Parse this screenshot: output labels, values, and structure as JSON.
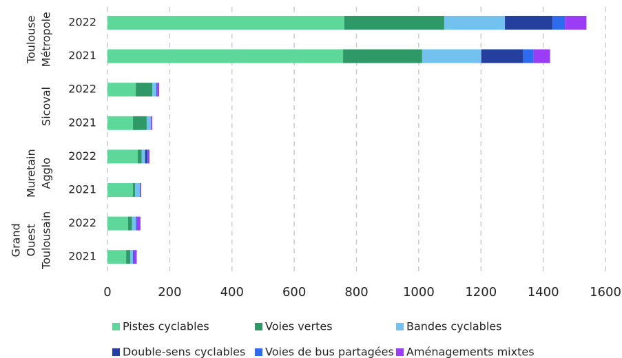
{
  "chart_data": {
    "type": "stacked-barh",
    "groups": [
      {
        "label": [
          "Toulouse",
          "Métropole"
        ],
        "categories": [
          "2022",
          "2021"
        ]
      },
      {
        "label": [
          "Sicoval"
        ],
        "categories": [
          "2022",
          "2021"
        ]
      },
      {
        "label": [
          "Muretain",
          "Agglo"
        ],
        "categories": [
          "2022",
          "2021"
        ]
      },
      {
        "label": [
          "Grand",
          "Ouest",
          "Toulousain"
        ],
        "categories": [
          "2022",
          "2021"
        ]
      }
    ],
    "series": [
      {
        "name": "Pistes cyclables",
        "color": "#5dd89a",
        "values": [
          761,
          757,
          91,
          82,
          97,
          82,
          66,
          60
        ]
      },
      {
        "name": "Voies vertes",
        "color": "#2e9966",
        "values": [
          321,
          254,
          53,
          44,
          13,
          7,
          13,
          13
        ]
      },
      {
        "name": "Bandes cyclables",
        "color": "#72c1ef",
        "values": [
          195,
          190,
          13,
          13,
          11,
          15,
          13,
          9
        ]
      },
      {
        "name": "Double-sens cyclables",
        "color": "#243f9e",
        "values": [
          153,
          135,
          1,
          0,
          7,
          1,
          1,
          1
        ]
      },
      {
        "name": "Voies de bus partagées",
        "color": "#2e6bef",
        "values": [
          40,
          33,
          2,
          1,
          2,
          1,
          2,
          2
        ]
      },
      {
        "name": "Aménagements mixtes",
        "color": "#9b3df5",
        "values": [
          69,
          53,
          6,
          4,
          5,
          2,
          11,
          9
        ]
      }
    ],
    "xlim": [
      0,
      1600
    ],
    "xticks": [
      0,
      200,
      400,
      600,
      800,
      1000,
      1200,
      1400,
      1600
    ],
    "grid": true
  }
}
